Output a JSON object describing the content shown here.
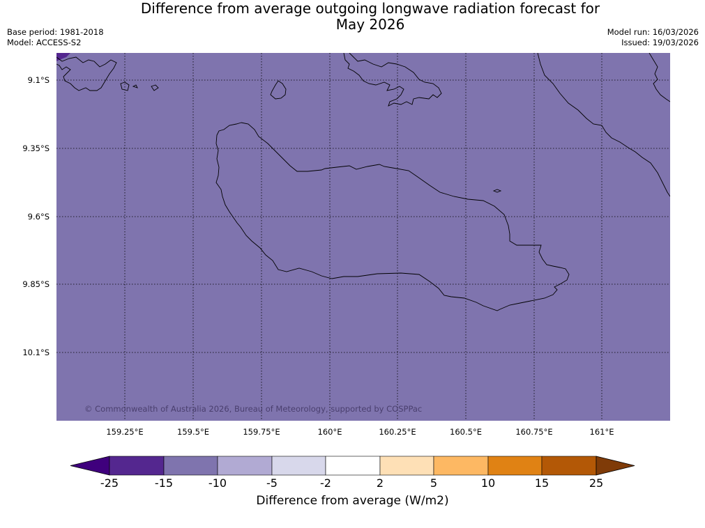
{
  "header": {
    "title_line1": "Difference from average outgoing longwave radiation forecast for",
    "title_line2": "May 2026",
    "base_period": "Base period: 1981-2018",
    "model": "Model: ACCESS-S2",
    "model_run": "Model run: 16/03/2026",
    "issued": "Issued: 19/03/2026"
  },
  "map": {
    "fill_color": "#7f74ae",
    "fill_category": "-15 to -10",
    "corner_patch_color": "#54278f",
    "coastline_color": "#000000",
    "lat_labels": [
      "9.1°S",
      "9.35°S",
      "9.6°S",
      "9.85°S",
      "10.1°S"
    ],
    "lon_labels": [
      "159.25°E",
      "159.5°E",
      "159.75°E",
      "160°E",
      "160.25°E",
      "160.5°E",
      "160.75°E",
      "161°E"
    ],
    "copyright": "© Commonwealth of Australia 2026, Bureau of Meteorology, supported by COSPPac"
  },
  "colorbar": {
    "label": "Difference from average (W/m2)",
    "ticks": [
      "-25",
      "-15",
      "-10",
      "-5",
      "-2",
      "2",
      "5",
      "10",
      "15",
      "25"
    ],
    "low_extend_color": "#3f007d",
    "high_extend_color": "#7f3b08",
    "colors": [
      "#54278f",
      "#7f74ae",
      "#b1aad3",
      "#d8d8eb",
      "#ffffff",
      "#fee0b6",
      "#fdb863",
      "#e08214",
      "#b35806"
    ]
  }
}
